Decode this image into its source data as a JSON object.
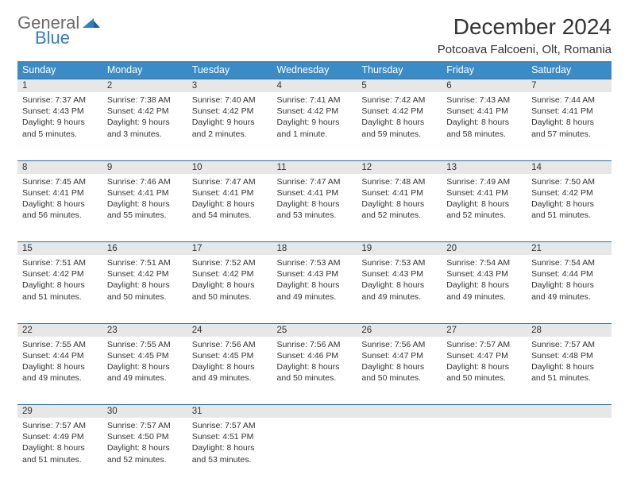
{
  "logo": {
    "general": "General",
    "blue": "Blue"
  },
  "title": "December 2024",
  "location": "Potcoava Falcoeni, Olt, Romania",
  "colors": {
    "header_bg": "#3b8bc7",
    "header_text": "#ffffff",
    "daynum_bg": "#e7e7e7",
    "daynum_border": "#2b6fa3",
    "body_text": "#333333",
    "logo_general": "#6a6a6a",
    "logo_blue": "#2f7fc0",
    "page_bg": "#ffffff"
  },
  "day_headers": [
    "Sunday",
    "Monday",
    "Tuesday",
    "Wednesday",
    "Thursday",
    "Friday",
    "Saturday"
  ],
  "weeks": [
    [
      {
        "n": "1",
        "sr": "Sunrise: 7:37 AM",
        "ss": "Sunset: 4:43 PM",
        "dl": "Daylight: 9 hours and 5 minutes."
      },
      {
        "n": "2",
        "sr": "Sunrise: 7:38 AM",
        "ss": "Sunset: 4:42 PM",
        "dl": "Daylight: 9 hours and 3 minutes."
      },
      {
        "n": "3",
        "sr": "Sunrise: 7:40 AM",
        "ss": "Sunset: 4:42 PM",
        "dl": "Daylight: 9 hours and 2 minutes."
      },
      {
        "n": "4",
        "sr": "Sunrise: 7:41 AM",
        "ss": "Sunset: 4:42 PM",
        "dl": "Daylight: 9 hours and 1 minute."
      },
      {
        "n": "5",
        "sr": "Sunrise: 7:42 AM",
        "ss": "Sunset: 4:42 PM",
        "dl": "Daylight: 8 hours and 59 minutes."
      },
      {
        "n": "6",
        "sr": "Sunrise: 7:43 AM",
        "ss": "Sunset: 4:41 PM",
        "dl": "Daylight: 8 hours and 58 minutes."
      },
      {
        "n": "7",
        "sr": "Sunrise: 7:44 AM",
        "ss": "Sunset: 4:41 PM",
        "dl": "Daylight: 8 hours and 57 minutes."
      }
    ],
    [
      {
        "n": "8",
        "sr": "Sunrise: 7:45 AM",
        "ss": "Sunset: 4:41 PM",
        "dl": "Daylight: 8 hours and 56 minutes."
      },
      {
        "n": "9",
        "sr": "Sunrise: 7:46 AM",
        "ss": "Sunset: 4:41 PM",
        "dl": "Daylight: 8 hours and 55 minutes."
      },
      {
        "n": "10",
        "sr": "Sunrise: 7:47 AM",
        "ss": "Sunset: 4:41 PM",
        "dl": "Daylight: 8 hours and 54 minutes."
      },
      {
        "n": "11",
        "sr": "Sunrise: 7:47 AM",
        "ss": "Sunset: 4:41 PM",
        "dl": "Daylight: 8 hours and 53 minutes."
      },
      {
        "n": "12",
        "sr": "Sunrise: 7:48 AM",
        "ss": "Sunset: 4:41 PM",
        "dl": "Daylight: 8 hours and 52 minutes."
      },
      {
        "n": "13",
        "sr": "Sunrise: 7:49 AM",
        "ss": "Sunset: 4:41 PM",
        "dl": "Daylight: 8 hours and 52 minutes."
      },
      {
        "n": "14",
        "sr": "Sunrise: 7:50 AM",
        "ss": "Sunset: 4:42 PM",
        "dl": "Daylight: 8 hours and 51 minutes."
      }
    ],
    [
      {
        "n": "15",
        "sr": "Sunrise: 7:51 AM",
        "ss": "Sunset: 4:42 PM",
        "dl": "Daylight: 8 hours and 51 minutes."
      },
      {
        "n": "16",
        "sr": "Sunrise: 7:51 AM",
        "ss": "Sunset: 4:42 PM",
        "dl": "Daylight: 8 hours and 50 minutes."
      },
      {
        "n": "17",
        "sr": "Sunrise: 7:52 AM",
        "ss": "Sunset: 4:42 PM",
        "dl": "Daylight: 8 hours and 50 minutes."
      },
      {
        "n": "18",
        "sr": "Sunrise: 7:53 AM",
        "ss": "Sunset: 4:43 PM",
        "dl": "Daylight: 8 hours and 49 minutes."
      },
      {
        "n": "19",
        "sr": "Sunrise: 7:53 AM",
        "ss": "Sunset: 4:43 PM",
        "dl": "Daylight: 8 hours and 49 minutes."
      },
      {
        "n": "20",
        "sr": "Sunrise: 7:54 AM",
        "ss": "Sunset: 4:43 PM",
        "dl": "Daylight: 8 hours and 49 minutes."
      },
      {
        "n": "21",
        "sr": "Sunrise: 7:54 AM",
        "ss": "Sunset: 4:44 PM",
        "dl": "Daylight: 8 hours and 49 minutes."
      }
    ],
    [
      {
        "n": "22",
        "sr": "Sunrise: 7:55 AM",
        "ss": "Sunset: 4:44 PM",
        "dl": "Daylight: 8 hours and 49 minutes."
      },
      {
        "n": "23",
        "sr": "Sunrise: 7:55 AM",
        "ss": "Sunset: 4:45 PM",
        "dl": "Daylight: 8 hours and 49 minutes."
      },
      {
        "n": "24",
        "sr": "Sunrise: 7:56 AM",
        "ss": "Sunset: 4:45 PM",
        "dl": "Daylight: 8 hours and 49 minutes."
      },
      {
        "n": "25",
        "sr": "Sunrise: 7:56 AM",
        "ss": "Sunset: 4:46 PM",
        "dl": "Daylight: 8 hours and 50 minutes."
      },
      {
        "n": "26",
        "sr": "Sunrise: 7:56 AM",
        "ss": "Sunset: 4:47 PM",
        "dl": "Daylight: 8 hours and 50 minutes."
      },
      {
        "n": "27",
        "sr": "Sunrise: 7:57 AM",
        "ss": "Sunset: 4:47 PM",
        "dl": "Daylight: 8 hours and 50 minutes."
      },
      {
        "n": "28",
        "sr": "Sunrise: 7:57 AM",
        "ss": "Sunset: 4:48 PM",
        "dl": "Daylight: 8 hours and 51 minutes."
      }
    ],
    [
      {
        "n": "29",
        "sr": "Sunrise: 7:57 AM",
        "ss": "Sunset: 4:49 PM",
        "dl": "Daylight: 8 hours and 51 minutes."
      },
      {
        "n": "30",
        "sr": "Sunrise: 7:57 AM",
        "ss": "Sunset: 4:50 PM",
        "dl": "Daylight: 8 hours and 52 minutes."
      },
      {
        "n": "31",
        "sr": "Sunrise: 7:57 AM",
        "ss": "Sunset: 4:51 PM",
        "dl": "Daylight: 8 hours and 53 minutes."
      },
      null,
      null,
      null,
      null
    ]
  ]
}
